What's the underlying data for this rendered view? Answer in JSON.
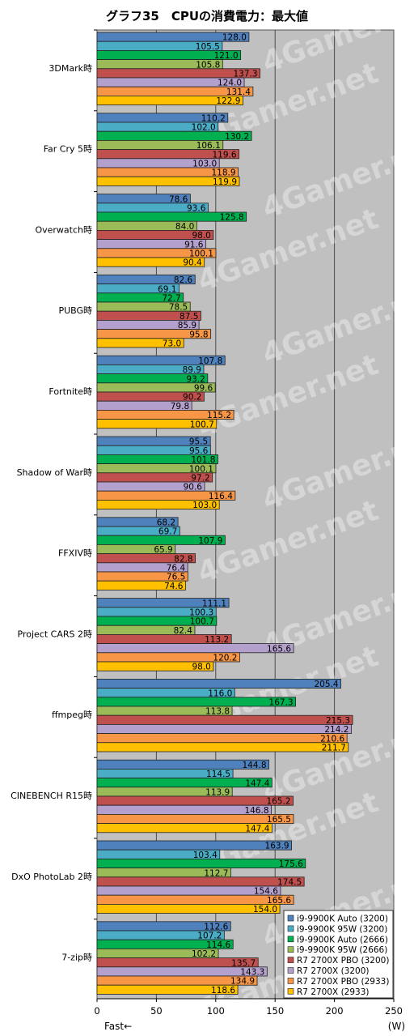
{
  "chart_data": {
    "type": "bar",
    "orientation": "horizontal",
    "title": "グラフ35　CPUの消費電力：最大値",
    "categories": [
      "3DMark時",
      "Far Cry 5時",
      "Overwatch時",
      "PUBG時",
      "Fortnite時",
      "Shadow of War時",
      "FFXIV時",
      "Project CARS 2時",
      "ffmpeg時",
      "CINEBENCH R15時",
      "DxO PhotoLab 2時",
      "7-zip時"
    ],
    "series": [
      {
        "name": "i9-9900K Auto (3200)",
        "color": "#4f81bd",
        "values": [
          128.0,
          110.2,
          78.6,
          82.6,
          107.8,
          95.5,
          68.2,
          111.1,
          205.4,
          144.8,
          163.9,
          112.6
        ]
      },
      {
        "name": "i9-9900K 95W (3200)",
        "color": "#4bacc6",
        "values": [
          105.5,
          102.0,
          93.6,
          69.1,
          89.9,
          95.6,
          69.7,
          100.3,
          116.0,
          114.5,
          103.4,
          107.2
        ]
      },
      {
        "name": "i9-9900K Auto (2666)",
        "color": "#00b050",
        "values": [
          121.0,
          130.2,
          125.8,
          72.7,
          93.2,
          101.8,
          107.9,
          100.7,
          167.3,
          147.4,
          175.6,
          114.6
        ]
      },
      {
        "name": "i9-9900K 95W (2666)",
        "color": "#9bbb59",
        "values": [
          105.8,
          106.1,
          84.0,
          78.5,
          99.6,
          100.1,
          65.9,
          82.4,
          113.8,
          113.9,
          112.7,
          102.2
        ]
      },
      {
        "name": "R7 2700X PBO (3200)",
        "color": "#c0504d",
        "values": [
          137.3,
          119.6,
          98.0,
          87.5,
          90.2,
          97.2,
          82.8,
          113.2,
          215.3,
          165.2,
          174.5,
          135.7
        ]
      },
      {
        "name": "R7 2700X (3200)",
        "color": "#b4a0cc",
        "values": [
          124.0,
          103.0,
          91.6,
          85.9,
          79.8,
          90.6,
          76.4,
          165.6,
          214.2,
          146.8,
          154.6,
          143.3
        ]
      },
      {
        "name": "R7 2700X PBO (2933)",
        "color": "#f79646",
        "values": [
          131.4,
          118.9,
          100.1,
          95.8,
          115.2,
          116.4,
          76.5,
          120.2,
          210.6,
          165.5,
          165.6,
          134.9
        ]
      },
      {
        "name": "R7 2700X (2933)",
        "color": "#ffc000",
        "values": [
          122.9,
          119.9,
          90.4,
          73.0,
          100.7,
          103.0,
          74.6,
          98.0,
          211.7,
          147.4,
          154.0,
          118.6
        ]
      }
    ],
    "xlim": [
      0,
      250
    ],
    "xticks": [
      0,
      50,
      100,
      150,
      200,
      250
    ],
    "xlabel_left": "Fast←",
    "unit": "(W)",
    "grid": true,
    "legend_position": "bottom-right",
    "watermark": "4Gamer.net"
  }
}
